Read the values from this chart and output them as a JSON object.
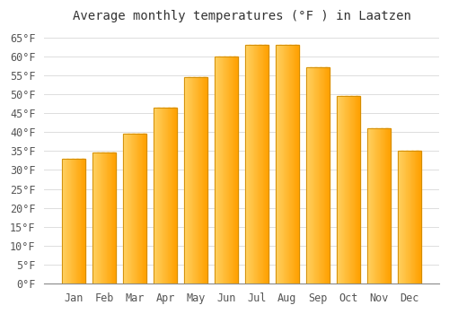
{
  "title": "Average monthly temperatures (°F ) in Laatzen",
  "months": [
    "Jan",
    "Feb",
    "Mar",
    "Apr",
    "May",
    "Jun",
    "Jul",
    "Aug",
    "Sep",
    "Oct",
    "Nov",
    "Dec"
  ],
  "values": [
    33.0,
    34.5,
    39.5,
    46.5,
    54.5,
    60.0,
    63.0,
    63.0,
    57.0,
    49.5,
    41.0,
    35.0
  ],
  "bar_color_left": "#FFD060",
  "bar_color_right": "#FFA000",
  "bar_edge_color": "#CC8800",
  "background_color": "#FFFFFF",
  "grid_color": "#DDDDDD",
  "ylim": [
    0,
    67
  ],
  "yticks": [
    0,
    5,
    10,
    15,
    20,
    25,
    30,
    35,
    40,
    45,
    50,
    55,
    60,
    65
  ],
  "title_fontsize": 10,
  "tick_fontsize": 8.5,
  "figsize": [
    5.0,
    3.5
  ],
  "dpi": 100
}
